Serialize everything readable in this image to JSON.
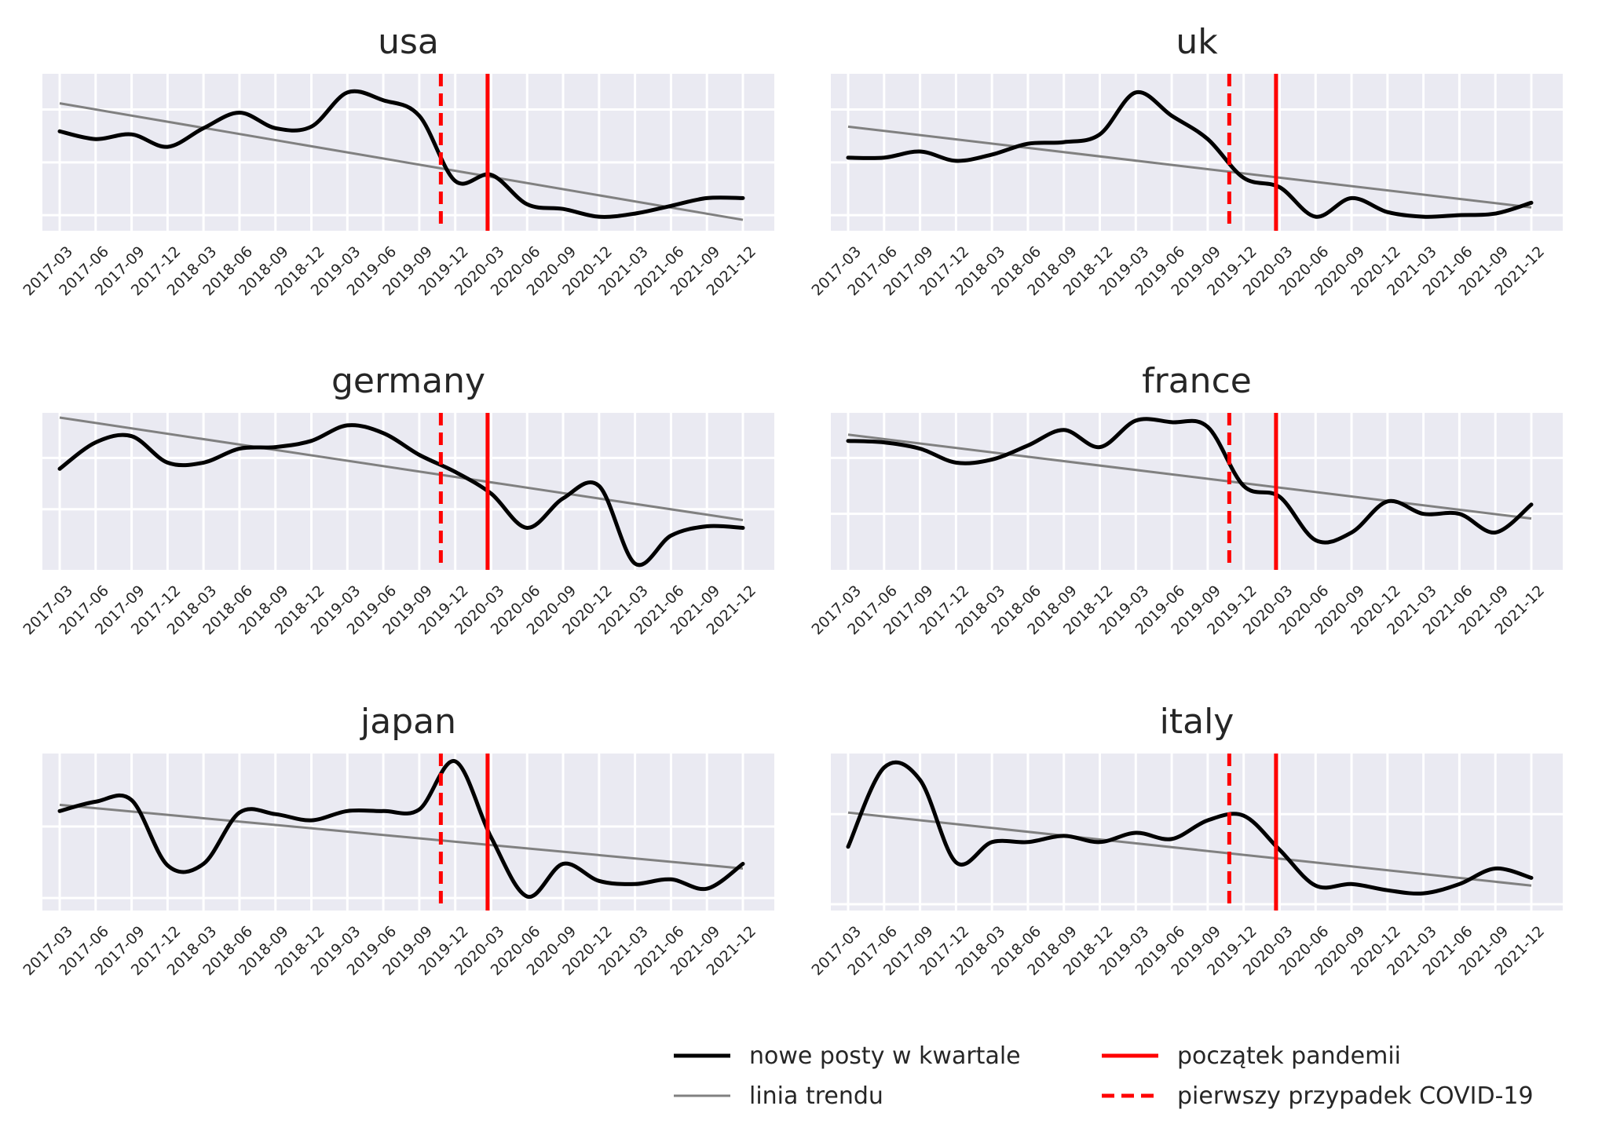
{
  "quarters": [
    "2017-03",
    "2017-06",
    "2017-09",
    "2017-12",
    "2018-03",
    "2018-06",
    "2018-09",
    "2018-12",
    "2019-03",
    "2019-06",
    "2019-09",
    "2019-12",
    "2020-03",
    "2020-06",
    "2020-09",
    "2020-12",
    "2021-03",
    "2021-06",
    "2021-09",
    "2021-12"
  ],
  "colors": {
    "series": "#000000",
    "trend": "#808080",
    "pandemic": "#ff0000",
    "background": "#eaeaf2",
    "grid": "#ffffff"
  },
  "legend": {
    "position": "lower-right",
    "items": [
      {
        "label": "nowe posty w kwartale",
        "style": "black-solid"
      },
      {
        "label": "początek pandemii",
        "style": "red-solid"
      },
      {
        "label": "linia trendu",
        "style": "gray-solid"
      },
      {
        "label": "pierwszy przypadek COVID-19",
        "style": "red-dashed"
      }
    ]
  },
  "chart_data": [
    {
      "type": "line",
      "title": "usa",
      "ylim": [
        0.1,
        1.05
      ],
      "yticks": [
        0.16,
        0.5,
        0.84
      ],
      "x_first_case": 10.6,
      "x_pandemic": 11.9,
      "values": [
        0.7,
        0.65,
        0.68,
        0.6,
        0.72,
        0.82,
        0.72,
        0.73,
        0.95,
        0.9,
        0.8,
        0.38,
        0.42,
        0.23,
        0.2,
        0.15,
        0.17,
        0.22,
        0.27,
        0.27
      ],
      "trend": [
        0.88,
        0.13
      ]
    },
    {
      "type": "line",
      "title": "uk",
      "ylim": [
        0.1,
        1.05
      ],
      "yticks": [
        0.16,
        0.5,
        0.84
      ],
      "x_first_case": 10.6,
      "x_pandemic": 11.9,
      "values": [
        0.53,
        0.53,
        0.57,
        0.51,
        0.55,
        0.62,
        0.63,
        0.68,
        0.95,
        0.8,
        0.65,
        0.4,
        0.34,
        0.15,
        0.27,
        0.18,
        0.15,
        0.16,
        0.17,
        0.24
      ],
      "trend": [
        0.73,
        0.21
      ]
    },
    {
      "type": "line",
      "title": "germany",
      "ylim": [
        0.1,
        1.05
      ],
      "yticks": [
        0.45,
        0.78
      ],
      "x_first_case": 10.6,
      "x_pandemic": 11.9,
      "values": [
        0.71,
        0.88,
        0.92,
        0.75,
        0.75,
        0.84,
        0.85,
        0.89,
        0.99,
        0.94,
        0.8,
        0.69,
        0.55,
        0.33,
        0.52,
        0.6,
        0.1,
        0.28,
        0.34,
        0.33
      ],
      "trend": [
        1.04,
        0.38
      ]
    },
    {
      "type": "line",
      "title": "france",
      "ylim": [
        0.1,
        1.05
      ],
      "yticks": [
        0.42,
        0.78
      ],
      "x_first_case": 10.6,
      "x_pandemic": 11.9,
      "values": [
        0.89,
        0.88,
        0.84,
        0.75,
        0.77,
        0.86,
        0.96,
        0.85,
        1.02,
        1.01,
        0.98,
        0.6,
        0.53,
        0.25,
        0.3,
        0.5,
        0.42,
        0.42,
        0.3,
        0.48
      ],
      "trend": [
        0.93,
        0.39
      ]
    },
    {
      "type": "line",
      "title": "japan",
      "ylim": [
        0.1,
        1.05
      ],
      "yticks": [
        0.14,
        0.6
      ],
      "x_first_case": 10.6,
      "x_pandemic": 11.9,
      "values": [
        0.7,
        0.76,
        0.77,
        0.35,
        0.36,
        0.69,
        0.68,
        0.64,
        0.7,
        0.7,
        0.71,
        1.02,
        0.53,
        0.15,
        0.36,
        0.25,
        0.23,
        0.26,
        0.2,
        0.36
      ],
      "trend": [
        0.74,
        0.33
      ]
    },
    {
      "type": "line",
      "title": "italy",
      "ylim": [
        0.1,
        1.05
      ],
      "yticks": [
        0.1,
        0.68
      ],
      "x_first_case": 10.6,
      "x_pandemic": 11.9,
      "values": [
        0.47,
        0.98,
        0.9,
        0.37,
        0.5,
        0.5,
        0.54,
        0.5,
        0.56,
        0.52,
        0.64,
        0.67,
        0.45,
        0.22,
        0.23,
        0.19,
        0.17,
        0.23,
        0.33,
        0.27
      ],
      "trend": [
        0.69,
        0.22
      ]
    }
  ]
}
